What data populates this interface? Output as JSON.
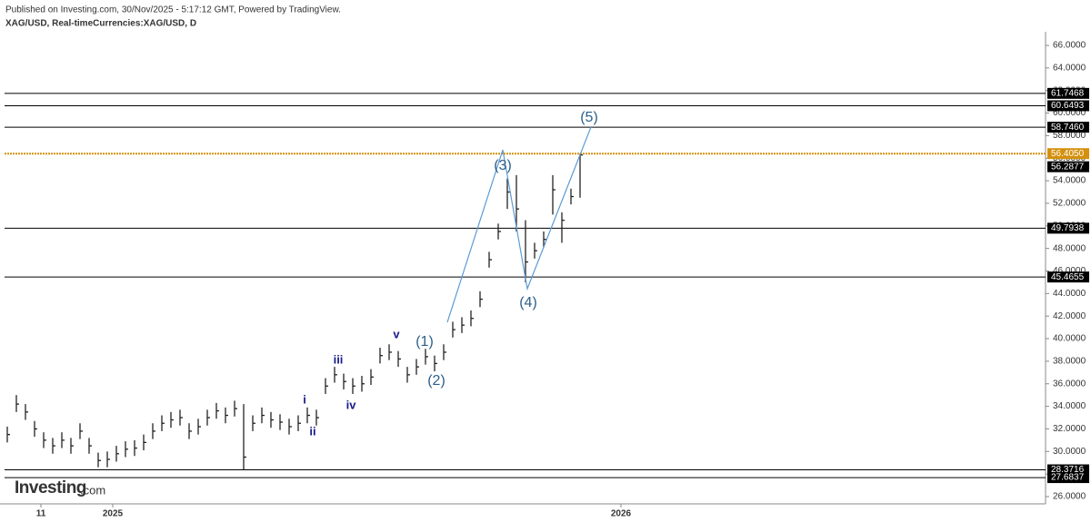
{
  "chart_data": {
    "type": "ohlc",
    "title": "XAG/USD, Real-timeCurrencies:XAG/USD, D",
    "subtitle": "Published on Investing.com, 30/Nov/2025 - 5:17:12 GMT, Powered by TradingView.",
    "brand": "Investing",
    "brand_suffix": ".com",
    "color": "#222222",
    "x": [
      0,
      1,
      2,
      3,
      4,
      5,
      6,
      7,
      8,
      9,
      10,
      11,
      12,
      13,
      14,
      15,
      16,
      17,
      18,
      19,
      20,
      21,
      22,
      23,
      24,
      25,
      26,
      27,
      28,
      29,
      30,
      31,
      32,
      33,
      34,
      35,
      36,
      37,
      38,
      39,
      40,
      41,
      42,
      43,
      44,
      45,
      46,
      47,
      48,
      49,
      50,
      51,
      52,
      53,
      54,
      55,
      56,
      57,
      58,
      59,
      60,
      61,
      62,
      63
    ],
    "high": [
      32.2,
      35.0,
      34.2,
      32.7,
      31.7,
      31.2,
      31.7,
      31.2,
      32.5,
      31.2,
      29.9,
      30.0,
      30.5,
      30.9,
      31.0,
      31.5,
      32.5,
      33.2,
      33.5,
      33.7,
      32.5,
      32.9,
      33.7,
      34.3,
      33.9,
      34.5,
      34.2,
      33.2,
      33.9,
      33.5,
      33.3,
      32.9,
      33.2,
      33.9,
      33.7,
      36.5,
      37.5,
      36.9,
      36.5,
      36.7,
      37.3,
      39.2,
      39.5,
      38.9,
      37.5,
      38.2,
      39.1,
      38.5,
      39.5,
      41.5,
      41.9,
      42.5,
      44.2,
      47.7,
      50.2,
      54.2,
      54.5,
      50.5,
      48.5,
      49.5,
      54.5,
      51.2,
      53.3,
      56.4
    ],
    "low": [
      30.8,
      33.5,
      32.8,
      31.3,
      30.3,
      29.8,
      30.3,
      29.8,
      31.1,
      29.8,
      28.6,
      28.6,
      29.1,
      29.5,
      29.6,
      30.1,
      31.1,
      31.8,
      32.1,
      32.3,
      31.1,
      31.5,
      32.3,
      32.9,
      32.5,
      33.1,
      28.4,
      31.8,
      32.5,
      32.1,
      31.9,
      31.5,
      31.8,
      32.5,
      32.3,
      35.1,
      36.1,
      35.5,
      35.1,
      35.3,
      35.9,
      37.8,
      38.1,
      37.5,
      36.1,
      36.8,
      37.7,
      37.1,
      38.1,
      40.1,
      40.5,
      41.1,
      42.8,
      46.3,
      48.8,
      51.5,
      49.5,
      45.0,
      47.1,
      48.1,
      51.0,
      48.5,
      51.9,
      52.5
    ],
    "close": [
      31.5,
      34.2,
      33.5,
      32.0,
      31.0,
      30.5,
      31.0,
      30.5,
      31.8,
      30.5,
      29.2,
      29.3,
      29.8,
      30.2,
      30.3,
      30.8,
      31.8,
      32.5,
      32.8,
      33.0,
      31.8,
      32.2,
      33.0,
      33.6,
      33.2,
      33.8,
      29.5,
      32.5,
      33.2,
      32.8,
      32.6,
      32.2,
      32.5,
      33.2,
      33.0,
      35.8,
      36.8,
      36.2,
      35.8,
      36.0,
      36.6,
      38.5,
      38.8,
      38.2,
      36.8,
      37.5,
      38.4,
      37.8,
      38.8,
      40.8,
      41.2,
      41.8,
      43.5,
      47.0,
      49.5,
      53.0,
      51.5,
      46.8,
      47.8,
      48.8,
      53.2,
      50.5,
      52.6,
      56.2877
    ],
    "wave": {
      "color": "#5b9bd5",
      "x": [
        48.4,
        54.5,
        57.2,
        64.2
      ],
      "values": [
        41.45,
        56.74,
        44.43,
        58.76
      ]
    },
    "annotations": [
      "(1)",
      "(2)",
      "(3)",
      "(4)",
      "(5)",
      "i",
      "ii",
      "iii",
      "iv",
      "v"
    ],
    "levels": [
      {
        "value": 61.7468,
        "label": "61.7468",
        "color": "#000000"
      },
      {
        "value": 60.6493,
        "label": "60.6493",
        "color": "#000000"
      },
      {
        "value": 58.746,
        "label": "58.7460",
        "color": "#000000"
      },
      {
        "value": 56.405,
        "label": "56.4050",
        "color": "#d4900e"
      },
      {
        "value": 49.7938,
        "label": "49.7938",
        "color": "#000000"
      },
      {
        "value": 45.4655,
        "label": "45.4655",
        "color": "#000000"
      },
      {
        "value": 28.3716,
        "label": "28.3716",
        "color": "#000000"
      },
      {
        "value": 27.6837,
        "label": "27.6837",
        "color": "#000000"
      }
    ],
    "xlim": [
      -0.3,
      114.2
    ],
    "xticks": [
      {
        "value": 3.7,
        "label": "11"
      },
      {
        "value": 11.6,
        "label": "2025"
      },
      {
        "value": 67.5,
        "label": "2026"
      }
    ],
    "ylim": [
      25.5,
      69.1
    ],
    "yticks": [
      {
        "value": 26,
        "label": "26.0000"
      },
      {
        "value": 28,
        "label": "28.0000"
      },
      {
        "value": 30,
        "label": "30.0000"
      },
      {
        "value": 32,
        "label": "32.0000"
      },
      {
        "value": 34,
        "label": "34.0000"
      },
      {
        "value": 36,
        "label": "36.0000"
      },
      {
        "value": 38,
        "label": "38.0000"
      },
      {
        "value": 40,
        "label": "40.0000"
      },
      {
        "value": 42,
        "label": "42.0000"
      },
      {
        "value": 44,
        "label": "44.0000"
      },
      {
        "value": 46,
        "label": "46.0000"
      },
      {
        "value": 48,
        "label": "48.0000"
      },
      {
        "value": 50,
        "label": "50.0000"
      },
      {
        "value": 52,
        "label": "52.0000"
      },
      {
        "value": 54,
        "label": "54.0000"
      },
      {
        "value": 56,
        "label": "56.0000"
      },
      {
        "value": 58,
        "label": "58.0000"
      },
      {
        "value": 60,
        "label": "60.0000"
      },
      {
        "value": 62,
        "label": "62.0000"
      },
      {
        "value": 64,
        "label": "64.0000"
      },
      {
        "value": 66,
        "label": "66.0000"
      }
    ]
  }
}
